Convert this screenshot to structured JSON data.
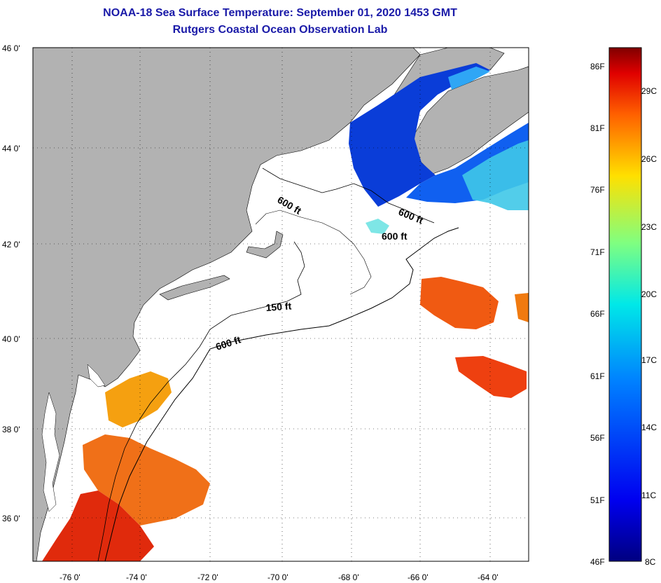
{
  "header": {
    "title": "NOAA-18 Sea Surface Temperature:  September 01, 2020 1453 GMT",
    "subtitle": "Rutgers Coastal Ocean Observation Lab"
  },
  "axes": {
    "longitude_labels": [
      "-76 0'",
      "-74 0'",
      "-72 0'",
      "-70 0'",
      "-68 0'",
      "-66 0'",
      "-64 0'"
    ],
    "latitude_labels": [
      "46 0'",
      "44 0'",
      "42 0'",
      "40 0'",
      "38 0'",
      "36 0'"
    ],
    "lon_range": [
      -77,
      -63
    ],
    "lat_range": [
      35,
      46
    ]
  },
  "contours": {
    "labels": [
      "600 ft",
      "600 ft",
      "600 ft",
      "150 ft",
      "600 ft"
    ]
  },
  "colorbar": {
    "fahrenheit": [
      "86F",
      "81F",
      "76F",
      "71F",
      "66F",
      "61F",
      "56F",
      "51F",
      "46F"
    ],
    "celsius": [
      "29C",
      "26C",
      "23C",
      "20C",
      "17C",
      "14C",
      "11C",
      "8C"
    ]
  },
  "colors": {
    "land": "#b2b2b2",
    "cloud": "#ffffff",
    "title": "#1a1aa8"
  }
}
